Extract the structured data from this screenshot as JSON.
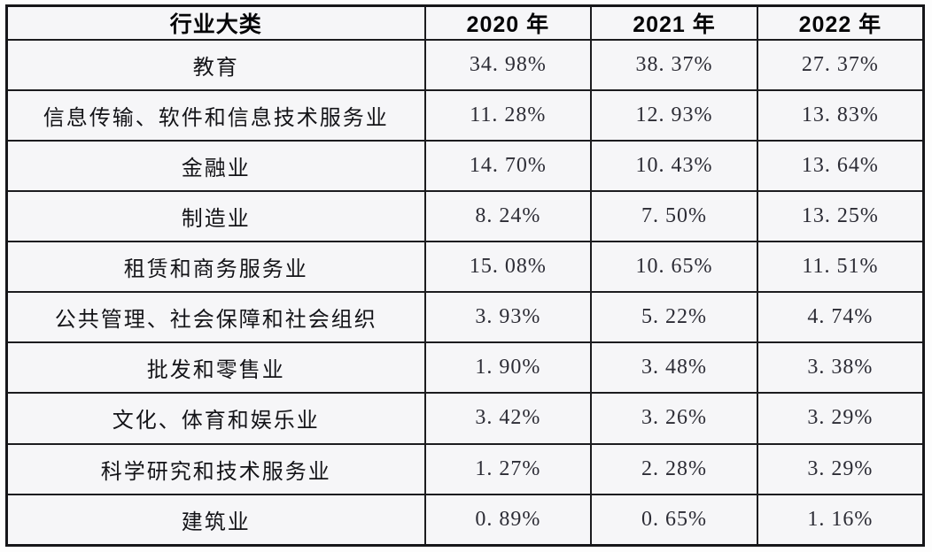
{
  "table": {
    "header": {
      "category": "行业大类",
      "years": [
        "2020 年",
        "2021 年",
        "2022 年"
      ]
    },
    "rows": [
      {
        "category": "教育",
        "values": [
          "34. 98%",
          "38. 37%",
          "27. 37%"
        ]
      },
      {
        "category": "信息传输、软件和信息技术服务业",
        "values": [
          "11. 28%",
          "12. 93%",
          "13. 83%"
        ]
      },
      {
        "category": "金融业",
        "values": [
          "14. 70%",
          "10. 43%",
          "13. 64%"
        ]
      },
      {
        "category": "制造业",
        "values": [
          "8. 24%",
          "7. 50%",
          "13. 25%"
        ]
      },
      {
        "category": "租赁和商务服务业",
        "values": [
          "15. 08%",
          "10. 65%",
          "11. 51%"
        ]
      },
      {
        "category": "公共管理、社会保障和社会组织",
        "values": [
          "3. 93%",
          "5. 22%",
          "4. 74%"
        ]
      },
      {
        "category": "批发和零售业",
        "values": [
          "1. 90%",
          "3. 48%",
          "3. 38%"
        ]
      },
      {
        "category": "文化、体育和娱乐业",
        "values": [
          "3. 42%",
          "3. 26%",
          "3. 29%"
        ]
      },
      {
        "category": "科学研究和技术服务业",
        "values": [
          "1. 27%",
          "2. 28%",
          "3. 29%"
        ]
      },
      {
        "category": "建筑业",
        "values": [
          "0. 89%",
          "0. 65%",
          "1. 16%"
        ]
      }
    ]
  },
  "colors": {
    "border": "#1c1c1f",
    "cell_background": "#f6f6f8",
    "header_text": "#050507",
    "value_text": "#2c2c35"
  },
  "chart_data": {
    "type": "table",
    "title": "",
    "columns": [
      "行业大类",
      "2020 年",
      "2021 年",
      "2022 年"
    ],
    "categories": [
      "教育",
      "信息传输、软件和信息技术服务业",
      "金融业",
      "制造业",
      "租赁和商务服务业",
      "公共管理、社会保障和社会组织",
      "批发和零售业",
      "文化、体育和娱乐业",
      "科学研究和技术服务业",
      "建筑业"
    ],
    "series": [
      {
        "name": "2020 年",
        "values": [
          34.98,
          11.28,
          14.7,
          8.24,
          15.08,
          3.93,
          1.9,
          3.42,
          1.27,
          0.89
        ]
      },
      {
        "name": "2021 年",
        "values": [
          38.37,
          12.93,
          10.43,
          7.5,
          10.65,
          5.22,
          3.48,
          3.26,
          2.28,
          0.65
        ]
      },
      {
        "name": "2022 年",
        "values": [
          27.37,
          13.83,
          13.64,
          13.25,
          11.51,
          4.74,
          3.38,
          3.29,
          3.29,
          1.16
        ]
      }
    ],
    "unit": "%",
    "layout": {
      "grid": true,
      "header_row_bold": true,
      "values_centered": true
    }
  }
}
